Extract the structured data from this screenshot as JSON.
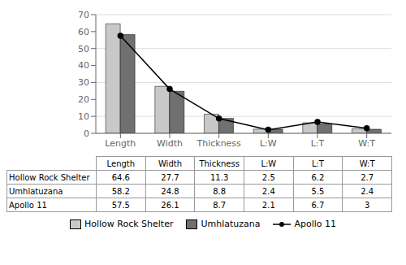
{
  "chart_data": {
    "type": "bar",
    "categories": [
      "Length",
      "Width",
      "Thickness",
      "L:W",
      "L:T",
      "W:T"
    ],
    "series": [
      {
        "name": "Hollow Rock Shelter",
        "color": "#c8c8c8",
        "values": [
          64.6,
          27.7,
          11.3,
          2.5,
          6.2,
          2.7
        ]
      },
      {
        "name": "Umhlatuzana",
        "color": "#707070",
        "values": [
          58.2,
          24.8,
          8.8,
          2.4,
          5.5,
          2.4
        ]
      },
      {
        "name": "Apollo 11",
        "type": "line",
        "color": "#000000",
        "marker": "circle",
        "values": [
          57.5,
          26.1,
          8.7,
          2.1,
          6.7,
          3.0
        ]
      }
    ],
    "ylim": [
      0,
      70
    ],
    "yticks": [
      0,
      10,
      20,
      30,
      40,
      50,
      60,
      70
    ],
    "grid": true,
    "legend": "bottom"
  }
}
